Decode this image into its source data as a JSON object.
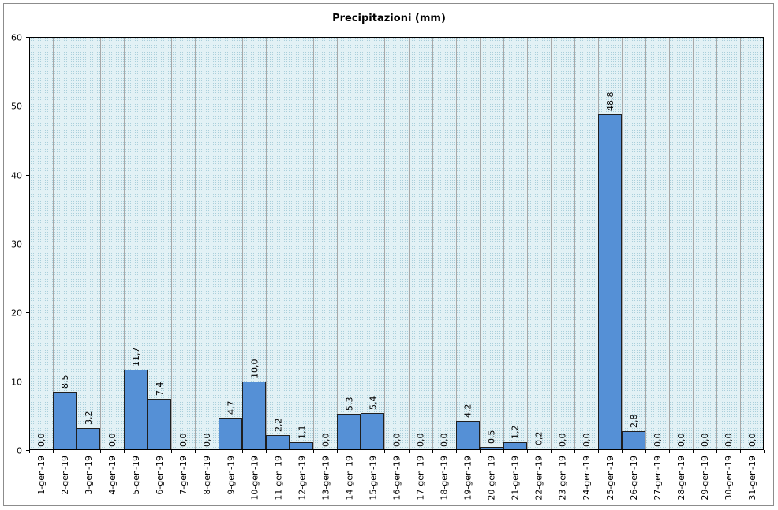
{
  "chart_data": {
    "type": "bar",
    "title": "Precipitazioni (mm)",
    "xlabel": "",
    "ylabel": "",
    "ylim": [
      0,
      60
    ],
    "yticks": [
      0,
      10,
      20,
      30,
      40,
      50,
      60
    ],
    "grid": true,
    "legend": "none",
    "bar_color": "#5590d6",
    "plot_background": "#dff0f4",
    "categories": [
      "1-gen-19",
      "2-gen-19",
      "3-gen-19",
      "4-gen-19",
      "5-gen-19",
      "6-gen-19",
      "7-gen-19",
      "8-gen-19",
      "9-gen-19",
      "10-gen-19",
      "11-gen-19",
      "12-gen-19",
      "13-gen-19",
      "14-gen-19",
      "15-gen-19",
      "16-gen-19",
      "17-gen-19",
      "18-gen-19",
      "19-gen-19",
      "20-gen-19",
      "21-gen-19",
      "22-gen-19",
      "23-gen-19",
      "24-gen-19",
      "25-gen-19",
      "26-gen-19",
      "27-gen-19",
      "28-gen-19",
      "29-gen-19",
      "30-gen-19",
      "31-gen-19"
    ],
    "values": [
      0.0,
      8.5,
      3.2,
      0.0,
      11.7,
      7.4,
      0.0,
      0.0,
      4.7,
      10.0,
      2.2,
      1.1,
      0.0,
      5.3,
      5.4,
      0.0,
      0.0,
      0.0,
      4.2,
      0.5,
      1.2,
      0.2,
      0.0,
      0.0,
      48.8,
      2.8,
      0.0,
      0.0,
      0.0,
      0.0,
      0.0
    ],
    "value_labels": [
      "0,0",
      "8,5",
      "3,2",
      "0,0",
      "11,7",
      "7,4",
      "0,0",
      "0,0",
      "4,7",
      "10,0",
      "2,2",
      "1,1",
      "0,0",
      "5,3",
      "5,4",
      "0,0",
      "0,0",
      "0,0",
      "4,2",
      "0,5",
      "1,2",
      "0,2",
      "0,0",
      "0,0",
      "48,8",
      "2,8",
      "0,0",
      "0,0",
      "0,0",
      "0,0",
      "0,0"
    ]
  }
}
